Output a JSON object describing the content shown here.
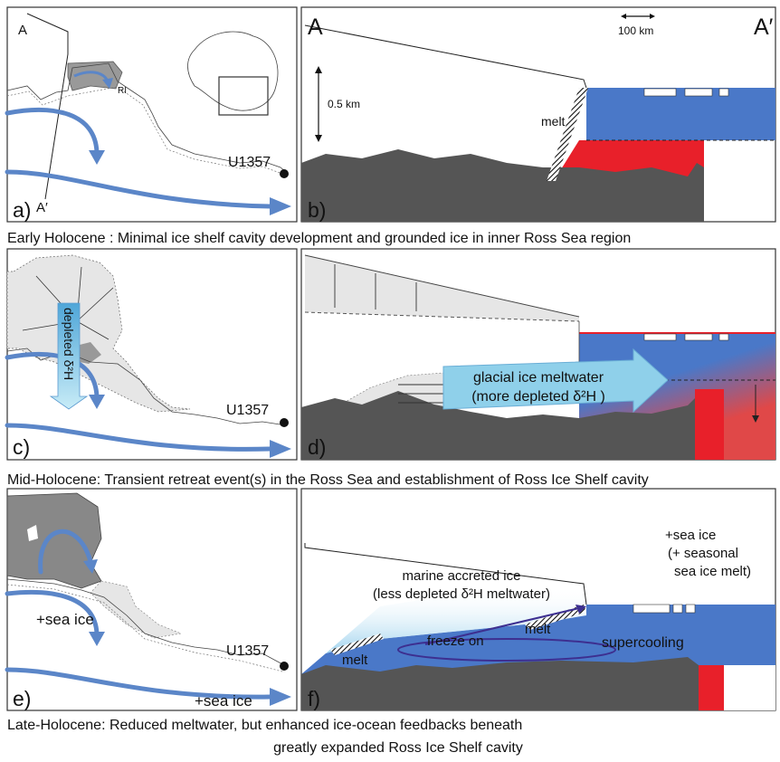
{
  "panels": [
    {
      "label": "a)",
      "transect_start": "A",
      "transect_end": "A′",
      "region": "RI",
      "site": "U1357"
    },
    {
      "label": "b)",
      "section_start": "A",
      "section_end": "A′",
      "scale_horizontal": "100 km",
      "scale_vertical": "0.5 km",
      "melt": "melt"
    },
    {
      "label": "c)",
      "arrow": "depleted δ²H",
      "site": "U1357"
    },
    {
      "label": "d)",
      "arrow_line1": "glacial ice meltwater",
      "arrow_line2": "(more depleted δ²H )"
    },
    {
      "label": "e)",
      "sea_ice_1": "+sea ice",
      "sea_ice_2": "+sea ice",
      "site": "U1357"
    },
    {
      "label": "f)",
      "sea_ice_line1": "+sea ice",
      "sea_ice_line2": "(+ seasonal",
      "sea_ice_line3": "sea ice melt)",
      "accreted_line1": "marine accreted ice",
      "accreted_line2": "(less depleted δ²H meltwater)",
      "supercooling": "supercooling",
      "freeze_on": "freeze on",
      "melt_left": "melt",
      "melt_right": "melt"
    }
  ],
  "captions": [
    "Early Holocene   : Minimal ice shelf cavity development and grounded ice in inner Ross Sea region",
    "Mid-Holocene: Transient retreat event(s) in the Ross Sea and establishment of Ross Ice Shelf cavity",
    "Late-Holocene: Reduced meltwater, but enhanced ice-ocean feedbacks beneath",
    "greatly expanded Ross Ice Shelf cavity"
  ]
}
